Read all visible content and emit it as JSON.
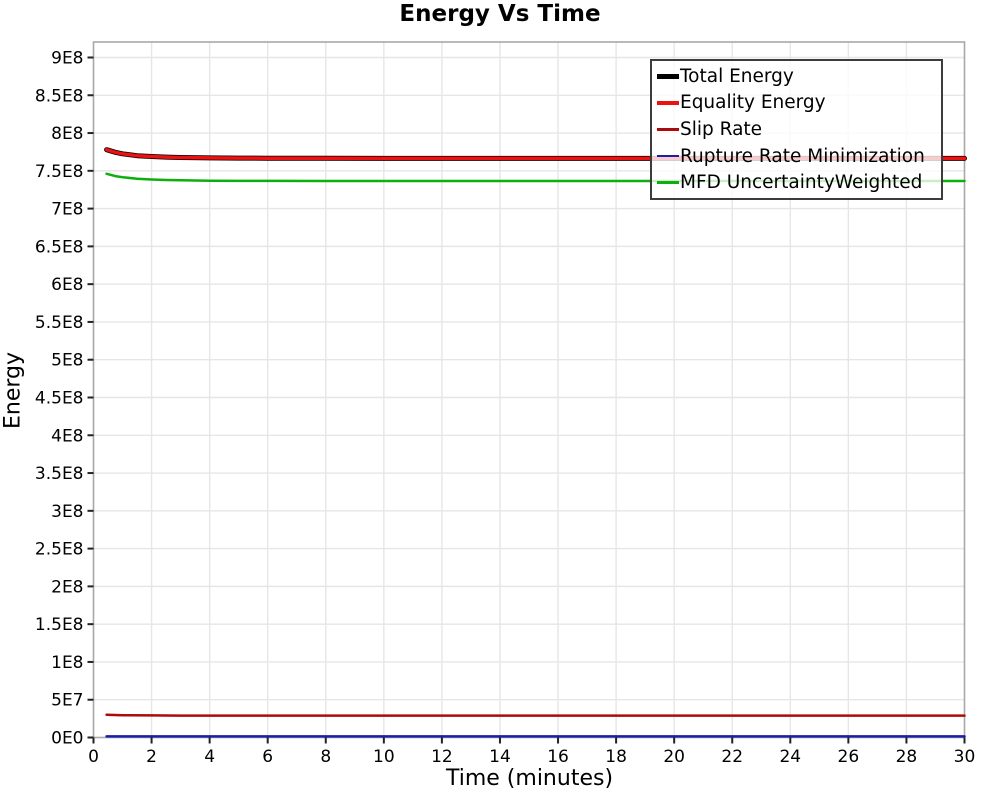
{
  "chart_data": {
    "type": "line",
    "title": "Energy Vs Time",
    "xlabel": "Time (minutes)",
    "ylabel": "Energy",
    "xlim": [
      0,
      30
    ],
    "ylim": [
      0,
      920500000
    ],
    "grid": "on",
    "legend_position": "top-right",
    "x_ticks": {
      "values": [
        0,
        2,
        4,
        6,
        8,
        10,
        12,
        14,
        16,
        18,
        20,
        22,
        24,
        26,
        28,
        30
      ],
      "labels": [
        "0",
        "2",
        "4",
        "6",
        "8",
        "10",
        "12",
        "14",
        "16",
        "18",
        "20",
        "22",
        "24",
        "26",
        "28",
        "30"
      ]
    },
    "y_ticks": {
      "values": [
        0,
        50000000,
        100000000,
        150000000,
        200000000,
        250000000,
        300000000,
        350000000,
        400000000,
        450000000,
        500000000,
        550000000,
        600000000,
        650000000,
        700000000,
        750000000,
        800000000,
        850000000,
        900000000
      ],
      "labels": [
        "0E0",
        "5E7",
        "1E8",
        "1.5E8",
        "2E8",
        "2.5E8",
        "3E8",
        "3.5E8",
        "4E8",
        "4.5E8",
        "5E8",
        "5.5E8",
        "6E8",
        "6.5E8",
        "7E8",
        "7.5E8",
        "8E8",
        "8.5E8",
        "9E8"
      ]
    },
    "colors": {
      "grid": "#e6e6e6",
      "plot_border": "#a8a8a8",
      "tick": "#222222",
      "text": "#000000"
    },
    "series": [
      {
        "name": "Total Energy",
        "color": "#000000",
        "stroke_width": 5,
        "points": [
          [
            0.45,
            778000000
          ],
          [
            0.75,
            774500000
          ],
          [
            1.0,
            772500000
          ],
          [
            1.5,
            770000000
          ],
          [
            2,
            769000000
          ],
          [
            2.5,
            768200000
          ],
          [
            3,
            767700000
          ],
          [
            4,
            767100000
          ],
          [
            5,
            766800000
          ],
          [
            6,
            766700000
          ],
          [
            8,
            766600000
          ],
          [
            10,
            766500000
          ],
          [
            15,
            766500000
          ],
          [
            20,
            766500000
          ],
          [
            25,
            766500000
          ],
          [
            30,
            766500000
          ]
        ]
      },
      {
        "name": "Equality Energy",
        "color": "#ee1111",
        "stroke_width": 3.5,
        "points": [
          [
            0.45,
            778000000
          ],
          [
            0.75,
            774500000
          ],
          [
            1.0,
            772500000
          ],
          [
            1.5,
            770000000
          ],
          [
            2,
            769000000
          ],
          [
            2.5,
            768200000
          ],
          [
            3,
            767700000
          ],
          [
            4,
            767100000
          ],
          [
            5,
            766800000
          ],
          [
            6,
            766700000
          ],
          [
            8,
            766600000
          ],
          [
            10,
            766500000
          ],
          [
            15,
            766500000
          ],
          [
            20,
            766500000
          ],
          [
            25,
            766500000
          ],
          [
            30,
            766500000
          ]
        ]
      },
      {
        "name": "Slip Rate",
        "color": "#ab0b0b",
        "stroke_width": 2.5,
        "points": [
          [
            0.45,
            30000000
          ],
          [
            1,
            29500000
          ],
          [
            2,
            29200000
          ],
          [
            3,
            29000000
          ],
          [
            5,
            29000000
          ],
          [
            10,
            29000000
          ],
          [
            15,
            29000000
          ],
          [
            20,
            29000000
          ],
          [
            25,
            29000000
          ],
          [
            30,
            29000000
          ]
        ]
      },
      {
        "name": "Rupture Rate Minimization",
        "color": "#1d1daa",
        "stroke_width": 2.5,
        "points": [
          [
            0.45,
            1500000
          ],
          [
            5,
            1500000
          ],
          [
            10,
            1500000
          ],
          [
            15,
            1500000
          ],
          [
            20,
            1500000
          ],
          [
            25,
            1500000
          ],
          [
            30,
            1500000
          ]
        ]
      },
      {
        "name": "MFD UncertaintyWeighted",
        "color": "#0cb00c",
        "stroke_width": 2.5,
        "points": [
          [
            0.45,
            746000000
          ],
          [
            0.75,
            743000000
          ],
          [
            1.0,
            741500000
          ],
          [
            1.5,
            739500000
          ],
          [
            2,
            738500000
          ],
          [
            2.5,
            737800000
          ],
          [
            3,
            737400000
          ],
          [
            4,
            736900000
          ],
          [
            5,
            736700000
          ],
          [
            6,
            736600000
          ],
          [
            8,
            736500000
          ],
          [
            10,
            736500000
          ],
          [
            15,
            736500000
          ],
          [
            20,
            736500000
          ],
          [
            25,
            736500000
          ],
          [
            30,
            736500000
          ]
        ]
      }
    ]
  }
}
